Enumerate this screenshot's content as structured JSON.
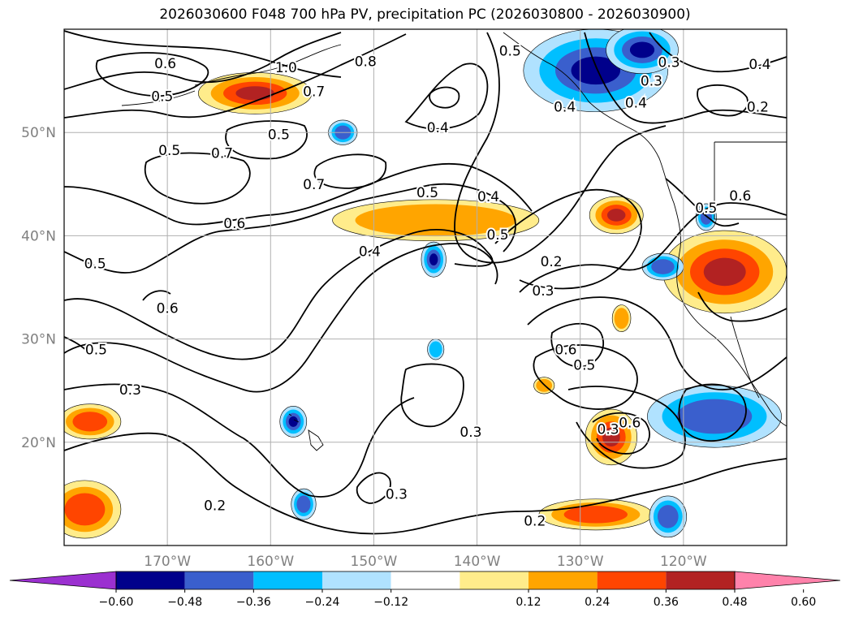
{
  "title": "2026030600 F048 700 hPa PV, precipitation PC (2026030800 - 2026030900)",
  "colors": {
    "background": "#ffffff",
    "grid": "#b0b0b0",
    "tick_label": "#808080",
    "contour": "#000000"
  },
  "map_data": {
    "type": "contour_map",
    "lon_range": [
      -180,
      -110
    ],
    "lat_range": [
      10,
      60
    ],
    "lat_ticks": [
      20,
      30,
      40,
      50
    ],
    "lat_tick_labels": [
      "20°N",
      "30°N",
      "40°N",
      "50°N"
    ],
    "lon_ticks": [
      -170,
      -160,
      -150,
      -140,
      -130,
      -120
    ],
    "lon_tick_labels": [
      "170°W",
      "160°W",
      "150°W",
      "140°W",
      "130°W",
      "120°W"
    ],
    "grid": true,
    "contour_labels": [
      {
        "text": "0.6",
        "lon": -170.2,
        "lat": 56.7
      },
      {
        "text": "0.5",
        "lon": -170.5,
        "lat": 53.5
      },
      {
        "text": "0.7",
        "lon": -155.8,
        "lat": 54.0
      },
      {
        "text": "0.5",
        "lon": -169.8,
        "lat": 48.3
      },
      {
        "text": "0.5",
        "lon": -159.2,
        "lat": 49.8
      },
      {
        "text": "0.7",
        "lon": -164.7,
        "lat": 48.0
      },
      {
        "text": "0.7",
        "lon": -155.8,
        "lat": 45.0
      },
      {
        "text": "0.6",
        "lon": -163.5,
        "lat": 41.2
      },
      {
        "text": "0.5",
        "lon": -177.0,
        "lat": 37.3
      },
      {
        "text": "0.6",
        "lon": -170.0,
        "lat": 33.0
      },
      {
        "text": "0.5",
        "lon": -176.9,
        "lat": 29.0
      },
      {
        "text": "0.3",
        "lon": -173.6,
        "lat": 25.1
      },
      {
        "text": "0.2",
        "lon": -165.4,
        "lat": 13.9
      },
      {
        "text": "0.3",
        "lon": -140.6,
        "lat": 21.0
      },
      {
        "text": "0.3",
        "lon": -147.8,
        "lat": 15.0
      },
      {
        "text": "0.2",
        "lon": -134.4,
        "lat": 12.4
      },
      {
        "text": "0.4",
        "lon": -143.8,
        "lat": 50.5
      },
      {
        "text": "0.5",
        "lon": -144.8,
        "lat": 44.2
      },
      {
        "text": "0.4",
        "lon": -138.9,
        "lat": 43.8
      },
      {
        "text": "0.4",
        "lon": -150.4,
        "lat": 38.5
      },
      {
        "text": "0.5",
        "lon": -138.0,
        "lat": 40.1
      },
      {
        "text": "0.8",
        "lon": -150.8,
        "lat": 56.9
      },
      {
        "text": "0.5",
        "lon": -136.8,
        "lat": 57.9
      },
      {
        "text": "1.0",
        "lon": -158.5,
        "lat": 56.3
      },
      {
        "text": "0.2",
        "lon": -132.8,
        "lat": 37.5
      },
      {
        "text": "0.3",
        "lon": -133.6,
        "lat": 34.7
      },
      {
        "text": "0.6",
        "lon": -131.4,
        "lat": 29.0
      },
      {
        "text": "0.5",
        "lon": -129.6,
        "lat": 27.5
      },
      {
        "text": "0.3",
        "lon": -127.3,
        "lat": 21.3
      },
      {
        "text": "0.6",
        "lon": -125.2,
        "lat": 21.9
      },
      {
        "text": "0.3",
        "lon": -121.4,
        "lat": 56.8
      },
      {
        "text": "0.3",
        "lon": -123.1,
        "lat": 55.0
      },
      {
        "text": "0.4",
        "lon": -124.6,
        "lat": 52.9
      },
      {
        "text": "0.4",
        "lon": -131.5,
        "lat": 52.5
      },
      {
        "text": "0.2",
        "lon": -112.8,
        "lat": 52.5
      },
      {
        "text": "0.5",
        "lon": -117.8,
        "lat": 42.7
      },
      {
        "text": "0.6",
        "lon": -114.5,
        "lat": 43.9
      },
      {
        "text": "0.4",
        "lon": -112.6,
        "lat": 56.6
      }
    ],
    "colorbar": {
      "ticks": [
        "−0.60",
        "−0.48",
        "−0.36",
        "−0.24",
        "−0.12",
        "0.12",
        "0.24",
        "0.36",
        "0.48",
        "0.60"
      ],
      "colors": [
        "#9b30d0",
        "#00008b",
        "#3a5fcd",
        "#00bfff",
        "#b0e2ff",
        "#ffffff",
        "#ffec8b",
        "#ffa500",
        "#ff4500",
        "#b22222",
        "#ff82ab"
      ]
    },
    "shaded_blobs": [
      {
        "sign": "positive",
        "level": 3,
        "lon": -161.5,
        "lat": 53.8,
        "rlon": 5.5,
        "rlat": 2.0
      },
      {
        "sign": "positive",
        "level": 1,
        "lon": -144.0,
        "lat": 41.5,
        "rlon": 10.0,
        "rlat": 2.0
      },
      {
        "sign": "positive",
        "level": 3,
        "lon": -126.5,
        "lat": 42.0,
        "rlon": 2.6,
        "rlat": 1.8
      },
      {
        "sign": "positive",
        "level": 4,
        "lon": -116.0,
        "lat": 36.5,
        "rlon": 6.0,
        "rlat": 4.0
      },
      {
        "sign": "positive",
        "level": 2,
        "lon": -177.5,
        "lat": 22.0,
        "rlon": 3.0,
        "rlat": 1.7
      },
      {
        "sign": "positive",
        "level": 2,
        "lon": -178.0,
        "lat": 13.5,
        "rlon": 3.5,
        "rlat": 2.8
      },
      {
        "sign": "positive",
        "level": 2,
        "lon": -128.5,
        "lat": 13.0,
        "rlon": 5.5,
        "rlat": 1.5
      },
      {
        "sign": "positive",
        "level": 3,
        "lon": -127.0,
        "lat": 20.5,
        "rlon": 2.5,
        "rlat": 2.7
      },
      {
        "sign": "positive",
        "level": 1,
        "lon": -126.0,
        "lat": 32.0,
        "rlon": 0.9,
        "rlat": 1.3
      },
      {
        "sign": "positive",
        "level": 1,
        "lon": -133.5,
        "lat": 25.5,
        "rlon": 1.0,
        "rlat": 0.8
      },
      {
        "sign": "negative",
        "level": 3,
        "lon": -128.5,
        "lat": 56.0,
        "rlon": 7.0,
        "rlat": 4.0
      },
      {
        "sign": "negative",
        "level": 4,
        "lon": -124.0,
        "lat": 58.0,
        "rlon": 3.5,
        "rlat": 2.3
      },
      {
        "sign": "negative",
        "level": 2,
        "lon": -117.0,
        "lat": 22.5,
        "rlon": 6.5,
        "rlat": 3.0
      },
      {
        "sign": "negative",
        "level": 2,
        "lon": -122.0,
        "lat": 37.0,
        "rlon": 2.0,
        "rlat": 1.3
      },
      {
        "sign": "negative",
        "level": 2,
        "lon": -153.0,
        "lat": 50.0,
        "rlon": 1.4,
        "rlat": 1.2
      },
      {
        "sign": "negative",
        "level": 3,
        "lon": -144.2,
        "lat": 37.7,
        "rlon": 1.2,
        "rlat": 1.7
      },
      {
        "sign": "negative",
        "level": 3,
        "lon": -157.8,
        "lat": 22.0,
        "rlon": 1.3,
        "rlat": 1.5
      },
      {
        "sign": "negative",
        "level": 2,
        "lon": -156.8,
        "lat": 14.0,
        "rlon": 1.2,
        "rlat": 1.5
      },
      {
        "sign": "negative",
        "level": 2,
        "lon": -121.5,
        "lat": 12.8,
        "rlon": 1.8,
        "rlat": 2.0
      },
      {
        "sign": "negative",
        "level": 2,
        "lon": -117.8,
        "lat": 41.8,
        "rlon": 1.0,
        "rlat": 1.3
      },
      {
        "sign": "negative",
        "level": 1,
        "lon": -144.0,
        "lat": 29.0,
        "rlon": 0.8,
        "rlat": 1.0
      }
    ]
  }
}
